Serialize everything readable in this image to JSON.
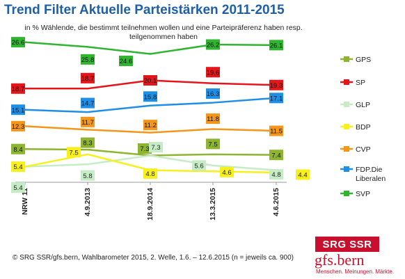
{
  "chart_data": {
    "type": "line",
    "title": "Trend Filter Aktuelle Parteistärken 2011-2015",
    "subtitle": "in % Wählende, die bestimmt teilnehmen wollen und eine Parteipräferenz haben resp. teilgenommen haben",
    "categories": [
      "NRW 11",
      "4.9.2013",
      "18.9.2014",
      "13.3.2015",
      "4.6.2015"
    ],
    "series": [
      {
        "name": "GPS",
        "color": "#8db52f",
        "values": [
          8.4,
          8.3,
          7.3,
          7.5,
          7.4
        ],
        "labels": [
          "8.4",
          "8.3",
          "7.3",
          "7.5",
          "7.4"
        ]
      },
      {
        "name": "SP",
        "color": "#e3161b",
        "values": [
          18.7,
          18.7,
          20.1,
          19.6,
          19.3
        ],
        "labels": [
          "18.7",
          "18.7",
          "20.1",
          "19.6",
          "19.3"
        ]
      },
      {
        "name": "GLP",
        "color": "#c6ecc6",
        "values": [
          5.4,
          5.8,
          7.3,
          5.6,
          4.8
        ],
        "labels": [
          "5.4",
          "5.8",
          "7.3",
          "5.6",
          "4.8"
        ]
      },
      {
        "name": "BDP",
        "color": "#f7f01d",
        "values": [
          5.4,
          7.5,
          4.8,
          4.6,
          4.4
        ],
        "labels": [
          "5.4",
          "7.5",
          "4.8",
          "4.6",
          "4.4"
        ]
      },
      {
        "name": "CVP",
        "color": "#f39619",
        "values": [
          12.3,
          11.7,
          11.2,
          11.8,
          11.5
        ],
        "labels": [
          "12.3",
          "11.7",
          "11.2",
          "11.8",
          "11.5"
        ]
      },
      {
        "name": "FDP.Die Liberalen",
        "color": "#1f8fe6",
        "values": [
          15.1,
          14.7,
          15.8,
          16.3,
          17.1
        ],
        "labels": [
          "15.1",
          "14.7",
          "15.8",
          "16.3",
          "17.1"
        ]
      },
      {
        "name": "SVP",
        "color": "#2fb52f",
        "values": [
          26.6,
          25.8,
          24.6,
          26.2,
          26.1
        ],
        "labels": [
          "26.6",
          "25.8",
          "24.6",
          "26.2",
          "26.1"
        ]
      }
    ],
    "grid": false,
    "legend": "right"
  },
  "footer": "© SRG SSR/gfs.bern, Wahlbarometer 2015, 2. Welle, 1.6. – 12.6.2015 (n = jeweils ca. 900)",
  "logos": {
    "srg": "SRG SSR",
    "gfs_name": "gfs.bern",
    "gfs_slogan": "Menschen. Meinungen. Märkte."
  }
}
